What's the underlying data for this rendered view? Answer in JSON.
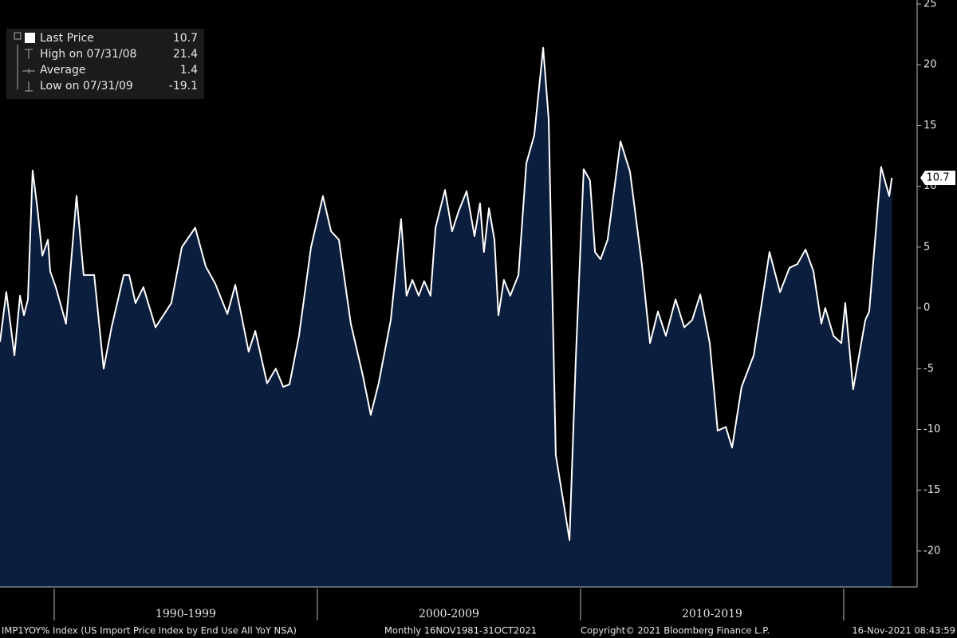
{
  "chart_data": {
    "type": "area",
    "legend": [
      {
        "label": "Last Price",
        "value": 10.7
      },
      {
        "label": "High on 07/31/08",
        "value": 21.4
      },
      {
        "label": "Average",
        "value": 1.4
      },
      {
        "label": "Low on 07/31/09",
        "value": -19.1
      }
    ],
    "series": [
      {
        "name": "Last Price",
        "color": "#ffffff",
        "fill": "#0b1e3e",
        "x": [
          1987.94,
          1988.18,
          1988.49,
          1988.7,
          1988.85,
          1989.0,
          1989.18,
          1989.36,
          1989.55,
          1989.76,
          1989.85,
          1990.06,
          1990.45,
          1990.85,
          1991.12,
          1991.52,
          1991.88,
          1992.18,
          1992.64,
          1992.85,
          1993.09,
          1993.39,
          1993.85,
          1994.45,
          1994.85,
          1995.36,
          1995.76,
          1996.12,
          1996.58,
          1996.88,
          1997.39,
          1997.64,
          1998.09,
          1998.42,
          1998.7,
          1998.94,
          1999.3,
          1999.76,
          2000.21,
          2000.52,
          2000.82,
          2001.27,
          2001.73,
          2002.03,
          2002.33,
          2002.79,
          2003.18,
          2003.39,
          2003.61,
          2003.85,
          2004.06,
          2004.3,
          2004.49,
          2004.85,
          2005.12,
          2005.36,
          2005.67,
          2005.97,
          2006.18,
          2006.33,
          2006.52,
          2006.73,
          2006.88,
          2007.09,
          2007.33,
          2007.64,
          2007.94,
          2008.24,
          2008.58,
          2008.79,
          2009.06,
          2009.36,
          2009.58,
          2009.82,
          2010.12,
          2010.36,
          2010.55,
          2010.76,
          2011.03,
          2011.52,
          2011.88,
          2012.33,
          2012.64,
          2012.94,
          2013.24,
          2013.61,
          2013.94,
          2014.24,
          2014.55,
          2014.91,
          2015.21,
          2015.52,
          2015.76,
          2016.12,
          2016.58,
          2017.18,
          2017.58,
          2017.94,
          2018.24,
          2018.55,
          2018.85,
          2019.15,
          2019.3,
          2019.61,
          2019.91,
          2020.06,
          2020.36,
          2020.82,
          2020.97,
          2021.42,
          2021.73,
          2021.83
        ],
        "values": [
          -2.8,
          1.3,
          -3.9,
          1.0,
          -0.6,
          0.7,
          11.3,
          8.2,
          4.3,
          5.6,
          3.0,
          1.7,
          -1.3,
          9.2,
          2.7,
          2.7,
          -5.0,
          -1.6,
          2.7,
          2.7,
          0.4,
          1.7,
          -1.6,
          0.4,
          5.0,
          6.6,
          3.4,
          2.0,
          -0.5,
          1.9,
          -3.6,
          -1.9,
          -6.2,
          -5.0,
          -6.5,
          -6.3,
          -2.3,
          5.0,
          9.2,
          6.3,
          5.6,
          -1.3,
          -5.6,
          -8.8,
          -6.2,
          -1.0,
          7.3,
          1.0,
          2.3,
          1.0,
          2.2,
          1.0,
          6.6,
          9.7,
          6.3,
          7.9,
          9.6,
          5.9,
          8.6,
          4.6,
          8.2,
          5.6,
          -0.6,
          2.3,
          1.0,
          2.7,
          11.9,
          14.2,
          21.4,
          15.5,
          -12.1,
          -16.1,
          -19.1,
          -4.2,
          11.4,
          10.5,
          4.6,
          4.0,
          5.6,
          13.7,
          11.2,
          3.6,
          -2.9,
          -0.3,
          -2.3,
          0.7,
          -1.6,
          -1.0,
          1.1,
          -2.9,
          -10.1,
          -9.8,
          -11.5,
          -6.5,
          -3.9,
          4.6,
          1.3,
          3.3,
          3.6,
          4.8,
          3.0,
          -1.3,
          0.0,
          -2.3,
          -2.9,
          0.4,
          -6.7,
          -1.0,
          -0.3,
          11.6,
          9.2,
          10.7
        ]
      }
    ],
    "xlim": [
      1987.94,
      2022.79
    ],
    "xseparators": [
      1990,
      2000,
      2010,
      2020
    ],
    "xticks": [
      {
        "value": 1995,
        "label": "1990-1999"
      },
      {
        "value": 2005,
        "label": "2000-2009"
      },
      {
        "value": 2015,
        "label": "2010-2019"
      }
    ],
    "ylim": [
      -22.96,
      25.33
    ],
    "yticks": [
      25,
      20,
      15,
      10,
      5,
      0,
      -5,
      -10,
      -15,
      -20
    ],
    "footer": [
      "IMP1YOY% Index (US Import Price Index by End Use All YoY NSA)",
      "Monthly 16NOV1981-31OCT2021",
      "Copyright© 2021 Bloomberg Finance L.P.",
      "16-Nov-2021 08:43:59"
    ]
  }
}
